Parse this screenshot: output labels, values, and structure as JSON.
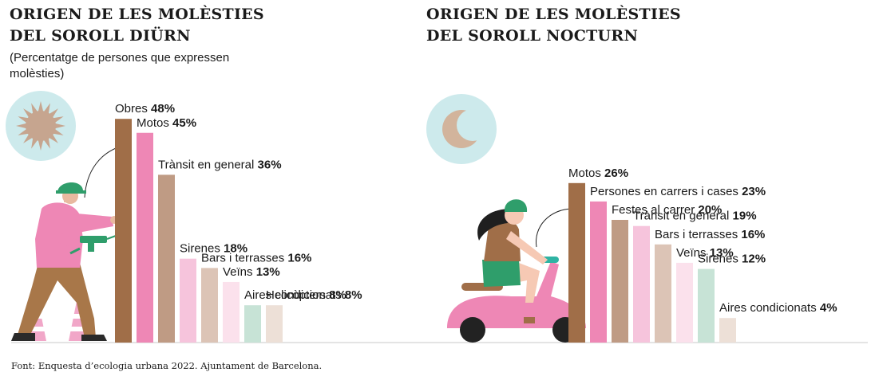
{
  "colors": {
    "bars": [
      "#a06e48",
      "#ee87b5",
      "#bf9b84",
      "#f6c4dc",
      "#dcc4b6",
      "#fbe1ec",
      "#c7e3d6",
      "#ede0d7"
    ],
    "icon_bg": "#cdeaec",
    "sun": "#c6a58f",
    "baseline": "#dcdcdc"
  },
  "left": {
    "title_line1": "ORIGEN DE LES MOLÈSTIES",
    "title_line2": "DEL SOROLL DIÜRN",
    "subtitle": "(Percentatge de persones que expressen molèsties)",
    "icon": "sun-icon",
    "illustration": "construction-worker-with-drill"
  },
  "right": {
    "title_line1": "ORIGEN DE LES MOLÈSTIES",
    "title_line2": "DEL SOROLL NOCTURN",
    "icon": "moon-icon",
    "illustration": "woman-on-scooter"
  },
  "source": "Font: Enquesta d’ecologia urbana 2022. Ajuntament de Barcelona.",
  "chart_data": [
    {
      "type": "bar",
      "title": "ORIGEN DE LES MOLÈSTIES DEL SOROLL DIÜRN",
      "subtitle": "(Percentatge de persones que expressen molèsties)",
      "unit": "%",
      "categories": [
        "Obres",
        "Motos",
        "Trànsit en general",
        "Sirenes",
        "Bars i terrasses",
        "Veïns",
        "Aires condicionats",
        "Helicòpters"
      ],
      "values": [
        48,
        45,
        36,
        18,
        16,
        13,
        8,
        8
      ],
      "value_labels": [
        "48%",
        "45%",
        "36%",
        "18%",
        "16%",
        "13%",
        "8%",
        "8%"
      ]
    },
    {
      "type": "bar",
      "title": "ORIGEN DE LES MOLÈSTIES DEL SOROLL NOCTURN",
      "unit": "%",
      "categories": [
        "Motos",
        "Persones en carrers i cases",
        "Festes al carrer",
        "Trànsit en general",
        "Bars i terrasses",
        "Veïns",
        "Sirenes",
        "Aires condicionats"
      ],
      "values": [
        26,
        23,
        20,
        19,
        16,
        13,
        12,
        4
      ],
      "value_labels": [
        "26%",
        "23%",
        "20%",
        "19%",
        "16%",
        "13%",
        "12%",
        "4%"
      ]
    }
  ]
}
